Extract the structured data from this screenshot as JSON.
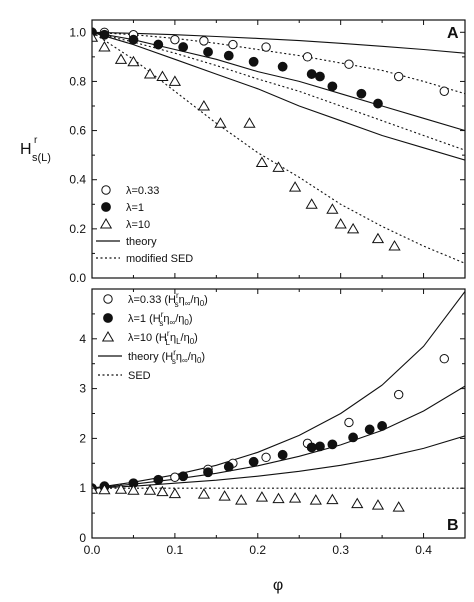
{
  "chart_data": [
    {
      "panel": "A",
      "type": "scatter",
      "x_label": "φ",
      "y_label": "H",
      "y_label_sub": "s(L)",
      "y_label_sup": "r",
      "xlim": [
        0,
        0.45
      ],
      "ylim": [
        0,
        1.05
      ],
      "x_ticks": [
        0.0,
        0.1,
        0.2,
        0.3,
        0.4
      ],
      "x_tick_labels": [
        "",
        "",
        "",
        "",
        ""
      ],
      "y_ticks": [
        0.0,
        0.2,
        0.4,
        0.6,
        0.8,
        1.0
      ],
      "y_tick_labels": [
        "0.0",
        "0.2",
        "0.4",
        "0.6",
        "0.8",
        "1.0"
      ],
      "legend_position": "bottom-left",
      "legend": [
        {
          "marker": "open-circle",
          "label": "λ=0.33"
        },
        {
          "marker": "filled-circle",
          "label": "λ=1"
        },
        {
          "marker": "open-triangle",
          "label": "λ=10"
        },
        {
          "marker": "solid-line",
          "label": "theory"
        },
        {
          "marker": "dotted-line",
          "label": "modified SED"
        }
      ],
      "series": [
        {
          "marker": "open-circle",
          "x": [
            0.0,
            0.015,
            0.05,
            0.1,
            0.135,
            0.17,
            0.21,
            0.26,
            0.31,
            0.37,
            0.425
          ],
          "y": [
            1.0,
            1.0,
            0.99,
            0.97,
            0.965,
            0.95,
            0.94,
            0.9,
            0.87,
            0.82,
            0.76
          ]
        },
        {
          "marker": "filled-circle",
          "x": [
            0.0,
            0.015,
            0.05,
            0.08,
            0.11,
            0.14,
            0.165,
            0.195,
            0.23,
            0.265,
            0.275,
            0.29,
            0.325,
            0.345
          ],
          "y": [
            1.0,
            0.99,
            0.97,
            0.95,
            0.94,
            0.92,
            0.905,
            0.88,
            0.86,
            0.83,
            0.82,
            0.78,
            0.75,
            0.71
          ]
        },
        {
          "marker": "open-triangle",
          "x": [
            0.0,
            0.015,
            0.035,
            0.05,
            0.07,
            0.085,
            0.1,
            0.135,
            0.155,
            0.19,
            0.205,
            0.225,
            0.245,
            0.265,
            0.29,
            0.3,
            0.315,
            0.345,
            0.365
          ],
          "y": [
            0.98,
            0.94,
            0.89,
            0.88,
            0.83,
            0.82,
            0.8,
            0.7,
            0.63,
            0.63,
            0.47,
            0.45,
            0.37,
            0.3,
            0.28,
            0.22,
            0.2,
            0.16,
            0.13
          ]
        }
      ],
      "curves": [
        {
          "style": "solid",
          "label": "theory",
          "x": [
            0.0,
            0.05,
            0.1,
            0.15,
            0.2,
            0.25,
            0.3,
            0.35,
            0.4,
            0.45
          ],
          "y": [
            1.0,
            0.996,
            0.99,
            0.983,
            0.975,
            0.966,
            0.955,
            0.943,
            0.93,
            0.915
          ]
        },
        {
          "style": "solid",
          "label": "theory",
          "x": [
            0.0,
            0.05,
            0.1,
            0.15,
            0.2,
            0.25,
            0.3,
            0.35,
            0.4,
            0.45
          ],
          "y": [
            1.0,
            0.97,
            0.93,
            0.89,
            0.84,
            0.8,
            0.75,
            0.7,
            0.65,
            0.6
          ]
        },
        {
          "style": "solid",
          "label": "theory",
          "x": [
            0.0,
            0.05,
            0.1,
            0.15,
            0.2,
            0.25,
            0.3,
            0.35,
            0.4,
            0.45
          ],
          "y": [
            1.0,
            0.95,
            0.89,
            0.83,
            0.77,
            0.7,
            0.64,
            0.58,
            0.53,
            0.48
          ]
        },
        {
          "style": "dotted",
          "label": "modified SED",
          "x": [
            0.0,
            0.05,
            0.1,
            0.15,
            0.2,
            0.25,
            0.3,
            0.35,
            0.4,
            0.45
          ],
          "y": [
            1.0,
            0.99,
            0.975,
            0.955,
            0.93,
            0.905,
            0.875,
            0.845,
            0.8,
            0.75
          ]
        },
        {
          "style": "dotted",
          "label": "modified SED",
          "x": [
            0.0,
            0.05,
            0.1,
            0.15,
            0.2,
            0.25,
            0.3,
            0.35,
            0.4,
            0.45
          ],
          "y": [
            1.0,
            0.96,
            0.915,
            0.865,
            0.81,
            0.76,
            0.7,
            0.64,
            0.58,
            0.52
          ]
        },
        {
          "style": "dotted",
          "label": "modified SED",
          "x": [
            0.0,
            0.05,
            0.1,
            0.15,
            0.2,
            0.25,
            0.3,
            0.35,
            0.4,
            0.45
          ],
          "y": [
            1.0,
            0.89,
            0.76,
            0.63,
            0.51,
            0.41,
            0.3,
            0.21,
            0.13,
            0.06
          ]
        }
      ]
    },
    {
      "panel": "B",
      "type": "scatter",
      "x_label": "φ",
      "xlim": [
        0,
        0.45
      ],
      "ylim": [
        0,
        5
      ],
      "x_ticks": [
        0.0,
        0.1,
        0.2,
        0.3,
        0.4
      ],
      "x_tick_labels": [
        "0.0",
        "0.1",
        "0.2",
        "0.3",
        "0.4"
      ],
      "y_ticks": [
        0,
        1,
        2,
        3,
        4
      ],
      "y_tick_labels": [
        "0",
        "1",
        "2",
        "3",
        "4"
      ],
      "legend_position": "top-left",
      "legend": [
        {
          "marker": "open-circle",
          "label": "λ=0.33 (H",
          "sub": "s",
          "sup": "r",
          "rest": "η",
          "rest_sub": "∞",
          "tail": "/η",
          "tail_sub": "0",
          "end": ")"
        },
        {
          "marker": "filled-circle",
          "label": "λ=1 (H",
          "sub": "s",
          "sup": "r",
          "rest": "η",
          "rest_sub": "∞",
          "tail": "/η",
          "tail_sub": "0",
          "end": ")"
        },
        {
          "marker": "open-triangle",
          "label": "λ=10 (H",
          "sub": "L",
          "sup": "r",
          "rest": "η",
          "rest_sub": "L",
          "tail": "/η",
          "tail_sub": "0",
          "end": ")"
        },
        {
          "marker": "solid-line",
          "label": "theory (H",
          "sub": "s",
          "sup": "r",
          "rest": "η",
          "rest_sub": "∞",
          "tail": "/η",
          "tail_sub": "0",
          "end": ")"
        },
        {
          "marker": "dotted-line",
          "label": "SED"
        }
      ],
      "series": [
        {
          "marker": "open-circle",
          "x": [
            0.0,
            0.015,
            0.05,
            0.1,
            0.14,
            0.17,
            0.21,
            0.26,
            0.31,
            0.37,
            0.425
          ],
          "y": [
            1.0,
            1.02,
            1.1,
            1.22,
            1.38,
            1.5,
            1.62,
            1.9,
            2.32,
            2.88,
            3.6
          ]
        },
        {
          "marker": "filled-circle",
          "x": [
            0.0,
            0.015,
            0.05,
            0.08,
            0.11,
            0.14,
            0.165,
            0.195,
            0.23,
            0.265,
            0.275,
            0.29,
            0.315,
            0.335,
            0.35
          ],
          "y": [
            1.0,
            1.04,
            1.1,
            1.17,
            1.24,
            1.32,
            1.43,
            1.53,
            1.67,
            1.82,
            1.84,
            1.88,
            2.02,
            2.18,
            2.25
          ]
        },
        {
          "marker": "open-triangle",
          "x": [
            0.0,
            0.015,
            0.035,
            0.05,
            0.07,
            0.085,
            0.1,
            0.135,
            0.16,
            0.18,
            0.205,
            0.225,
            0.245,
            0.27,
            0.29,
            0.32,
            0.345,
            0.37
          ],
          "y": [
            0.98,
            0.97,
            0.98,
            0.96,
            0.96,
            0.93,
            0.89,
            0.88,
            0.84,
            0.76,
            0.82,
            0.79,
            0.8,
            0.76,
            0.77,
            0.69,
            0.66,
            0.62
          ]
        }
      ],
      "curves": [
        {
          "style": "solid",
          "label": "theory",
          "x": [
            0.0,
            0.05,
            0.1,
            0.15,
            0.2,
            0.25,
            0.3,
            0.35,
            0.4,
            0.45
          ],
          "y": [
            1.0,
            1.12,
            1.27,
            1.46,
            1.72,
            2.06,
            2.5,
            3.07,
            3.85,
            4.95
          ]
        },
        {
          "style": "solid",
          "label": "theory",
          "x": [
            0.0,
            0.05,
            0.1,
            0.15,
            0.2,
            0.25,
            0.3,
            0.35,
            0.4,
            0.45
          ],
          "y": [
            1.0,
            1.08,
            1.18,
            1.3,
            1.45,
            1.64,
            1.87,
            2.16,
            2.55,
            3.05
          ]
        },
        {
          "style": "solid",
          "label": "theory",
          "x": [
            0.0,
            0.05,
            0.1,
            0.15,
            0.2,
            0.25,
            0.3,
            0.35,
            0.4,
            0.45
          ],
          "y": [
            1.0,
            1.04,
            1.1,
            1.16,
            1.24,
            1.34,
            1.46,
            1.61,
            1.8,
            2.05
          ]
        },
        {
          "style": "dotted",
          "label": "SED",
          "x": [
            0.0,
            0.45
          ],
          "y": [
            1.0,
            1.0
          ]
        }
      ]
    }
  ]
}
